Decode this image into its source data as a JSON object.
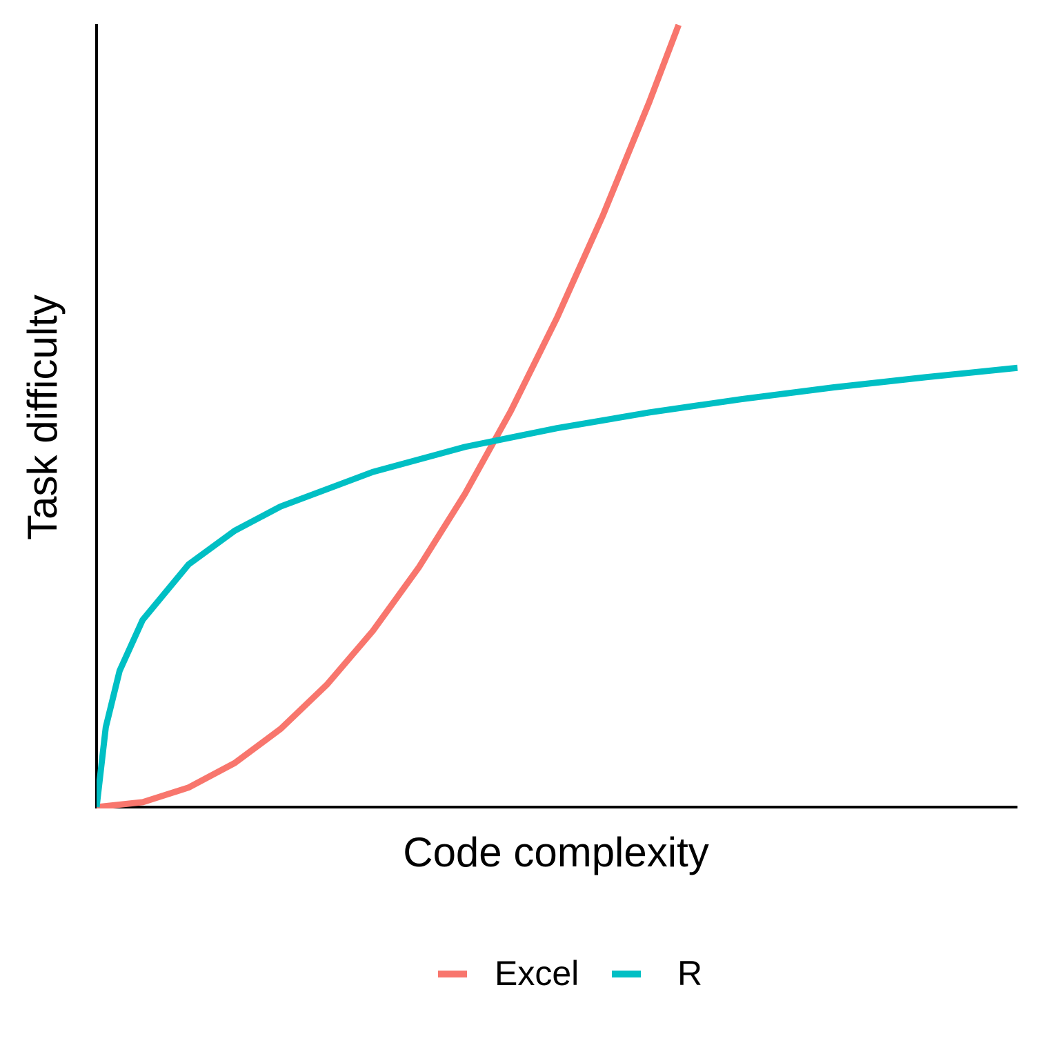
{
  "chart_data": {
    "type": "line",
    "x_label": "Code complexity",
    "y_label": "Task difficulty",
    "xlim": [
      0,
      10
    ],
    "ylim": [
      0,
      10
    ],
    "legend": "bottom",
    "series": [
      {
        "name": "Excel",
        "color": "#f8766d",
        "x": [
          0,
          0.5,
          1,
          1.5,
          2,
          2.5,
          3,
          3.5,
          4,
          4.5,
          5,
          5.5,
          6,
          6.32
        ],
        "values": [
          0,
          0.0625,
          0.25,
          0.5625,
          1,
          1.5625,
          2.25,
          3.0625,
          4,
          5.0625,
          6.25,
          7.5625,
          9,
          9.99
        ]
      },
      {
        "name": "R",
        "color": "#00bfc4",
        "x": [
          0,
          0.1,
          0.25,
          0.5,
          1,
          1.5,
          2,
          3,
          4,
          5,
          6,
          7,
          8,
          9,
          10
        ],
        "values": [
          0,
          1.02,
          1.74,
          2.39,
          3.1,
          3.53,
          3.84,
          4.28,
          4.6,
          4.84,
          5.04,
          5.21,
          5.36,
          5.49,
          5.61
        ]
      }
    ]
  }
}
